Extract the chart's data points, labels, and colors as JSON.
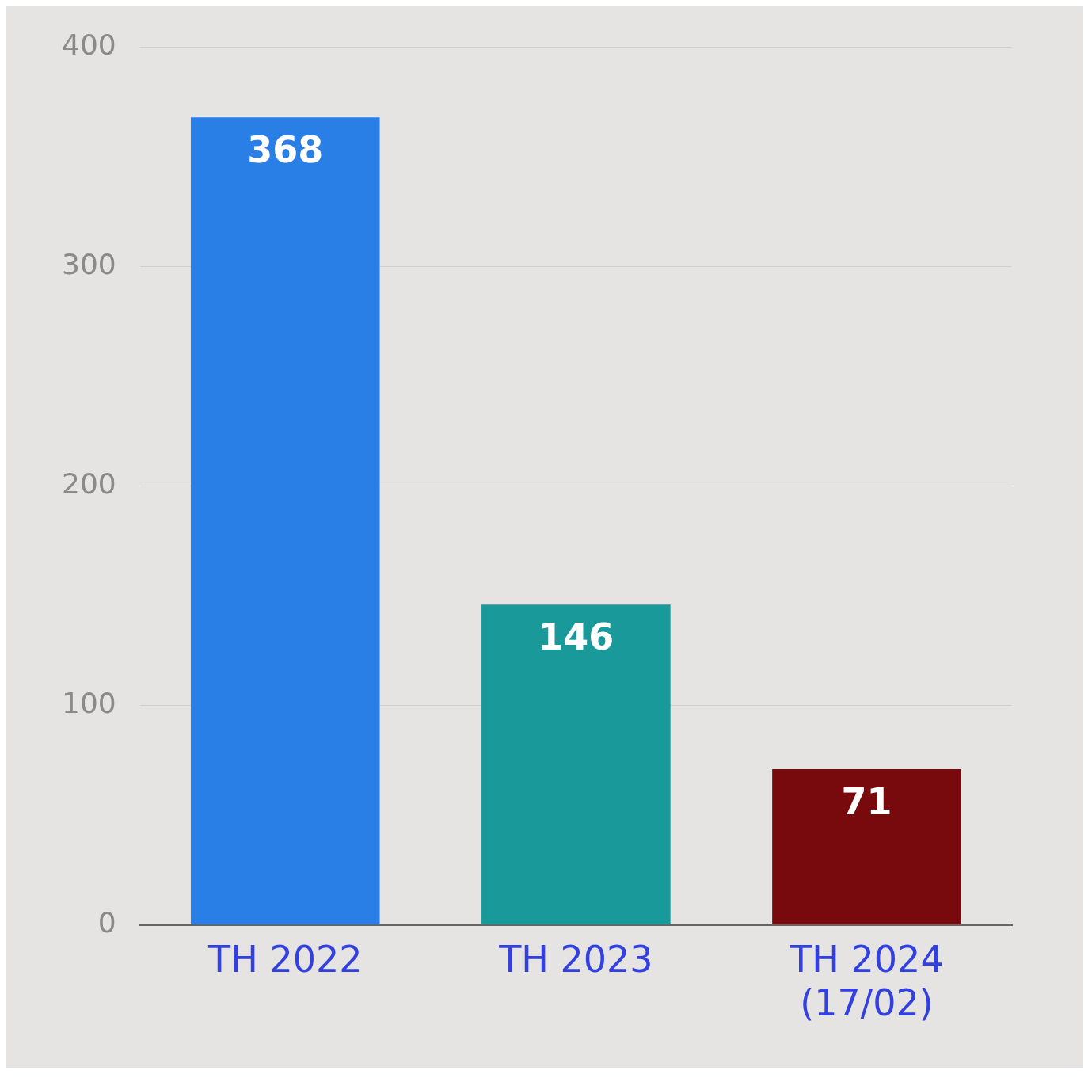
{
  "chart_data": {
    "type": "bar",
    "categories": [
      "TH 2022",
      "TH 2023",
      "TH 2024\n(17/02)"
    ],
    "values": [
      368,
      146,
      71
    ],
    "colors": [
      "#2a7fe6",
      "#19999a",
      "#780a0e"
    ],
    "ylim": [
      0,
      400
    ],
    "yticks": [
      0,
      100,
      200,
      300,
      400
    ],
    "grid": "y",
    "data_labels": true,
    "legend": false
  }
}
